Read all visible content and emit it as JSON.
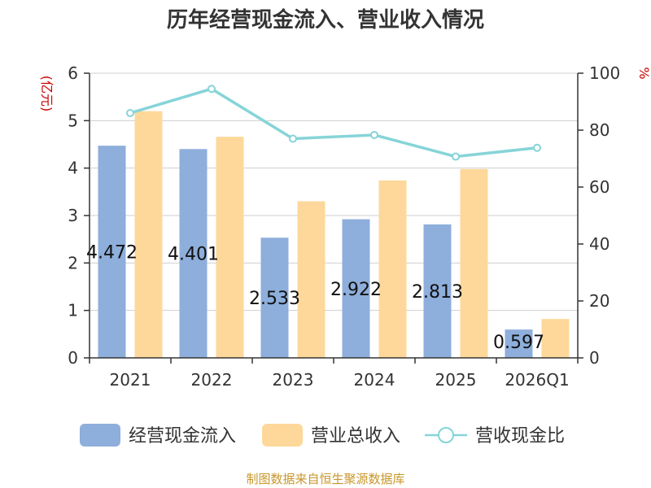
{
  "chart_data": {
    "type": "bar",
    "title": "历年经营现金流入、营业收入情况",
    "categories": [
      "2021",
      "2022",
      "2023",
      "2024",
      "2025",
      "2026Q1"
    ],
    "y_left": {
      "unit": "(亿元)",
      "ylim": [
        0,
        6
      ],
      "ticks": [
        0,
        1,
        2,
        3,
        4,
        5,
        6
      ]
    },
    "y_right": {
      "unit": "%",
      "ylim": [
        0,
        100
      ],
      "ticks": [
        0,
        20,
        40,
        60,
        80,
        100
      ]
    },
    "series": [
      {
        "name": "经营现金流入",
        "type": "bar",
        "axis": "left",
        "color": "#8eaedb",
        "values": [
          4.472,
          4.401,
          2.533,
          2.922,
          2.813,
          0.597
        ],
        "labels": [
          "4.472",
          "4.401",
          "2.533",
          "2.922",
          "2.813",
          "0.597"
        ]
      },
      {
        "name": "营业总收入",
        "type": "bar",
        "axis": "left",
        "color": "#fdd89a",
        "values": [
          5.2,
          4.66,
          3.3,
          3.74,
          3.98,
          0.82
        ]
      },
      {
        "name": "营收现金比",
        "type": "line",
        "axis": "right",
        "color": "#86d4d8",
        "values": [
          86,
          94.5,
          77,
          78.3,
          70.7,
          73.8
        ]
      }
    ],
    "grid": true,
    "legend_position": "bottom",
    "unit_color": "#cc0000",
    "source": "制图数据来自恒生聚源数据库",
    "source_color": "#c8962c"
  }
}
